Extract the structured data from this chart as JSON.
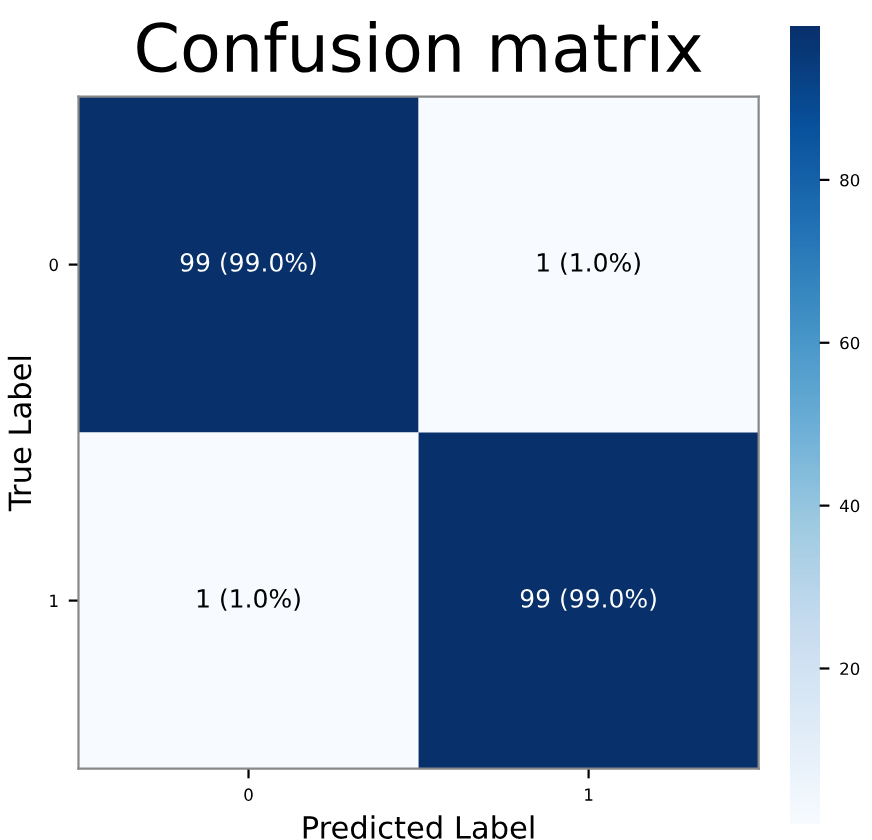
{
  "chart_data": {
    "type": "heatmap",
    "title": "Confusion matrix",
    "xlabel": "Predicted Label",
    "ylabel": "True Label",
    "categories": [
      "0",
      "1"
    ],
    "y_categories": [
      "0",
      "1"
    ],
    "cells": [
      [
        99,
        1
      ],
      [
        1,
        99
      ]
    ],
    "cell_labels": [
      [
        "99 (99.0%)",
        "1 (1.0%)"
      ],
      [
        "1 (1.0%)",
        "99 (99.0%)"
      ]
    ],
    "clim": [
      1,
      99
    ],
    "cticks": [
      20,
      40,
      60,
      80
    ]
  }
}
